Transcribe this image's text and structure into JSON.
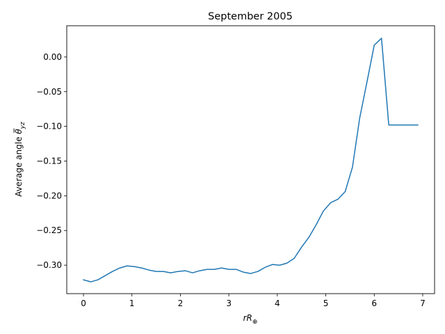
{
  "chart_data": {
    "type": "line",
    "title": "September 2005",
    "xlabel": "rR⊕",
    "ylabel": "Average angle θyz",
    "xlim": [
      -0.345,
      7.245
    ],
    "ylim": [
      -0.341,
      0.045
    ],
    "xticks": [
      0,
      1,
      2,
      3,
      4,
      5,
      6,
      7
    ],
    "yticks": [
      -0.3,
      -0.25,
      -0.2,
      -0.15,
      -0.1,
      -0.05,
      0.0
    ],
    "xtick_labels": [
      "0",
      "1",
      "2",
      "3",
      "4",
      "5",
      "6",
      "7"
    ],
    "ytick_labels": [
      "−0.30",
      "−0.25",
      "−0.20",
      "−0.15",
      "−0.10",
      "−0.05",
      "0.00"
    ],
    "grid": false,
    "series": [
      {
        "color": "#1f77b4",
        "x": [
          0.0,
          0.15,
          0.3,
          0.45,
          0.6,
          0.75,
          0.9,
          1.05,
          1.2,
          1.35,
          1.5,
          1.65,
          1.8,
          1.95,
          2.1,
          2.25,
          2.4,
          2.55,
          2.7,
          2.85,
          3.0,
          3.15,
          3.3,
          3.45,
          3.6,
          3.75,
          3.9,
          4.05,
          4.2,
          4.35,
          4.5,
          4.65,
          4.8,
          4.95,
          5.1,
          5.25,
          5.4,
          5.55,
          5.7,
          5.85,
          6.0,
          6.15,
          6.3,
          6.45,
          6.6,
          6.75,
          6.9
        ],
        "y": [
          -0.321,
          -0.324,
          -0.321,
          -0.315,
          -0.309,
          -0.304,
          -0.301,
          -0.302,
          -0.304,
          -0.307,
          -0.309,
          -0.309,
          -0.311,
          -0.309,
          -0.308,
          -0.311,
          -0.308,
          -0.306,
          -0.306,
          -0.304,
          -0.306,
          -0.306,
          -0.31,
          -0.312,
          -0.309,
          -0.303,
          -0.299,
          -0.3,
          -0.297,
          -0.29,
          -0.274,
          -0.26,
          -0.242,
          -0.222,
          -0.21,
          -0.205,
          -0.194,
          -0.159,
          -0.088,
          -0.036,
          0.017,
          0.027,
          -0.098,
          -0.098,
          -0.098,
          -0.098,
          -0.098
        ]
      }
    ]
  }
}
